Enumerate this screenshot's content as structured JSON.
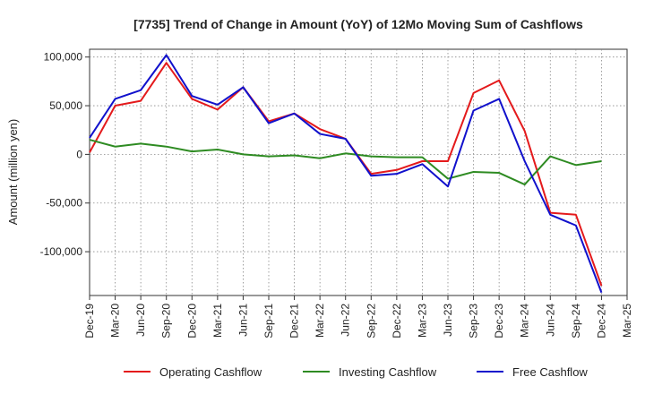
{
  "chart_data": {
    "type": "line",
    "title": "[7735]  Trend of Change in Amount (YoY) of 12Mo Moving Sum of Cashflows",
    "xlabel": "",
    "ylabel": "Amount (million yen)",
    "ylim": [
      -145000,
      108000
    ],
    "yticks": [
      100000,
      50000,
      0,
      -50000,
      -100000
    ],
    "ytick_labels": [
      "100,000",
      "50,000",
      "0",
      "-50,000",
      "-100,000"
    ],
    "categories": [
      "Dec-19",
      "Mar-20",
      "Jun-20",
      "Sep-20",
      "Dec-20",
      "Mar-21",
      "Jun-21",
      "Sep-21",
      "Dec-21",
      "Mar-22",
      "Jun-22",
      "Sep-22",
      "Dec-22",
      "Mar-23",
      "Jun-23",
      "Sep-23",
      "Dec-23",
      "Mar-24",
      "Jun-24",
      "Sep-24",
      "Dec-24",
      "Mar-25"
    ],
    "grid": true,
    "legend_position": "bottom",
    "series": [
      {
        "name": "Operating Cashflow",
        "color": "#e41a1c",
        "values": [
          2000,
          50000,
          55000,
          94000,
          57000,
          46000,
          69000,
          34000,
          42000,
          26000,
          16000,
          -20000,
          -16000,
          -7000,
          -7000,
          63000,
          76000,
          24000,
          -60000,
          -62000,
          -135000,
          null
        ]
      },
      {
        "name": "Investing Cashflow",
        "color": "#2e8b22",
        "values": [
          15000,
          8000,
          11000,
          8000,
          3000,
          5000,
          0,
          -2000,
          -1000,
          -4000,
          1000,
          -2000,
          -3000,
          -3000,
          -25000,
          -18000,
          -19000,
          -31000,
          -2000,
          -11000,
          -7000,
          null
        ]
      },
      {
        "name": "Free Cashflow",
        "color": "#1111cc",
        "values": [
          17000,
          57000,
          66000,
          102000,
          60000,
          51000,
          69000,
          32000,
          42000,
          21000,
          16000,
          -22000,
          -20000,
          -10000,
          -33000,
          45000,
          57000,
          -7000,
          -62000,
          -73000,
          -142000,
          null
        ]
      }
    ]
  }
}
